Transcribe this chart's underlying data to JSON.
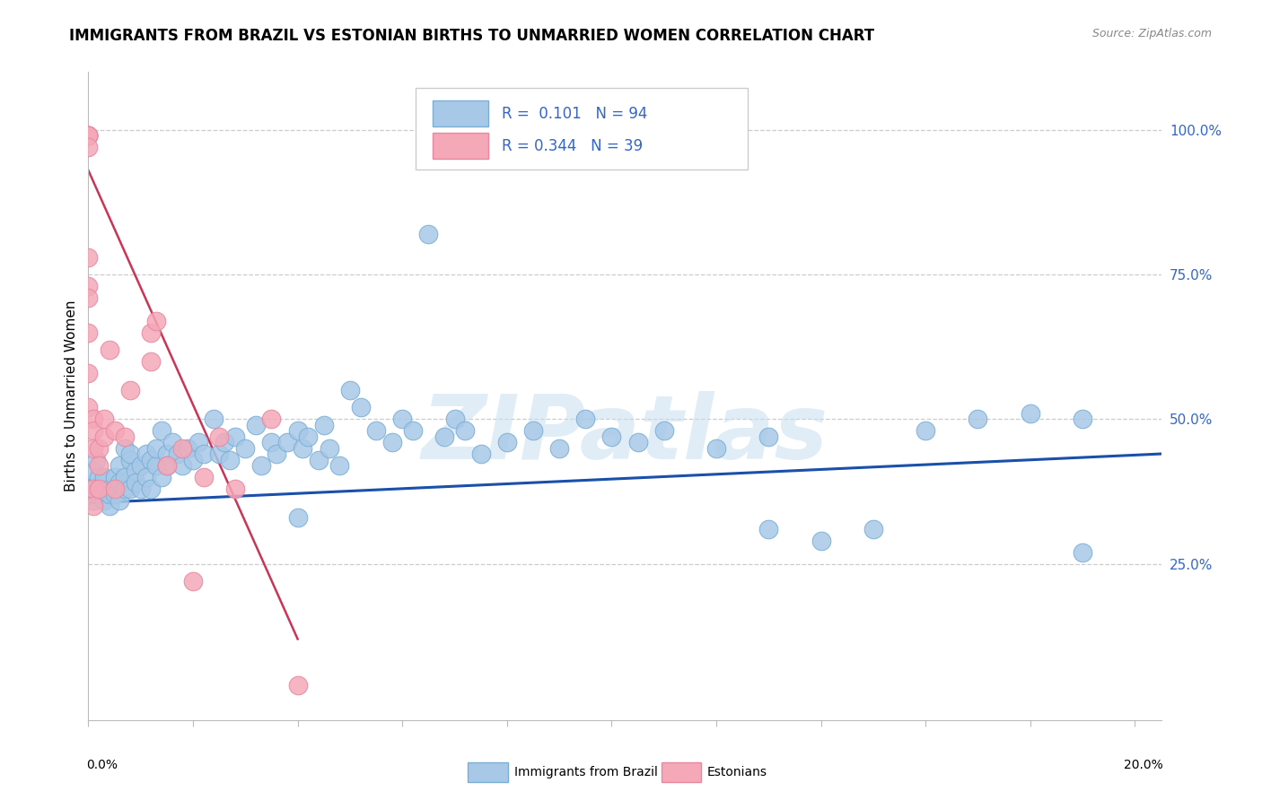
{
  "title": "IMMIGRANTS FROM BRAZIL VS ESTONIAN BIRTHS TO UNMARRIED WOMEN CORRELATION CHART",
  "source": "Source: ZipAtlas.com",
  "ylabel": "Births to Unmarried Women",
  "right_yticks": [
    "100.0%",
    "75.0%",
    "50.0%",
    "25.0%"
  ],
  "right_ytick_vals": [
    1.0,
    0.75,
    0.5,
    0.25
  ],
  "watermark": "ZIPatlas",
  "legend_blue_r": "R =  0.101",
  "legend_blue_n": "N = 94",
  "legend_pink_r": "R = 0.344",
  "legend_pink_n": "N = 39",
  "blue_color": "#a8c8e8",
  "pink_color": "#f4a8b8",
  "blue_edge_color": "#7aafd4",
  "pink_edge_color": "#e888a0",
  "blue_line_color": "#1a4faa",
  "pink_line_color": "#cc3355",
  "label_blue": "Immigrants from Brazil",
  "label_pink": "Estonians",
  "xlim": [
    0.0,
    0.205
  ],
  "ylim": [
    -0.02,
    1.1
  ],
  "blue_scatter_x": [
    0.0005,
    0.001,
    0.001,
    0.0015,
    0.002,
    0.002,
    0.002,
    0.003,
    0.003,
    0.003,
    0.003,
    0.004,
    0.004,
    0.004,
    0.005,
    0.005,
    0.005,
    0.006,
    0.006,
    0.006,
    0.007,
    0.007,
    0.007,
    0.008,
    0.008,
    0.008,
    0.009,
    0.009,
    0.01,
    0.01,
    0.011,
    0.011,
    0.012,
    0.012,
    0.013,
    0.013,
    0.014,
    0.014,
    0.015,
    0.015,
    0.016,
    0.017,
    0.018,
    0.019,
    0.02,
    0.021,
    0.022,
    0.024,
    0.025,
    0.026,
    0.027,
    0.028,
    0.03,
    0.032,
    0.033,
    0.035,
    0.036,
    0.038,
    0.04,
    0.04,
    0.041,
    0.042,
    0.044,
    0.045,
    0.046,
    0.048,
    0.05,
    0.052,
    0.055,
    0.058,
    0.06,
    0.062,
    0.065,
    0.068,
    0.07,
    0.072,
    0.075,
    0.08,
    0.085,
    0.09,
    0.095,
    0.1,
    0.105,
    0.11,
    0.12,
    0.13,
    0.14,
    0.15,
    0.16,
    0.17,
    0.18,
    0.19,
    0.19,
    0.13
  ],
  "blue_scatter_y": [
    0.38,
    0.36,
    0.41,
    0.43,
    0.37,
    0.4,
    0.38,
    0.37,
    0.39,
    0.36,
    0.4,
    0.38,
    0.35,
    0.37,
    0.4,
    0.38,
    0.37,
    0.36,
    0.42,
    0.39,
    0.38,
    0.45,
    0.4,
    0.43,
    0.38,
    0.44,
    0.41,
    0.39,
    0.42,
    0.38,
    0.44,
    0.4,
    0.43,
    0.38,
    0.42,
    0.45,
    0.4,
    0.48,
    0.44,
    0.42,
    0.46,
    0.44,
    0.42,
    0.45,
    0.43,
    0.46,
    0.44,
    0.5,
    0.44,
    0.46,
    0.43,
    0.47,
    0.45,
    0.49,
    0.42,
    0.46,
    0.44,
    0.46,
    0.48,
    0.33,
    0.45,
    0.47,
    0.43,
    0.49,
    0.45,
    0.42,
    0.55,
    0.52,
    0.48,
    0.46,
    0.5,
    0.48,
    0.82,
    0.47,
    0.5,
    0.48,
    0.44,
    0.46,
    0.48,
    0.45,
    0.5,
    0.47,
    0.46,
    0.48,
    0.45,
    0.47,
    0.29,
    0.31,
    0.48,
    0.5,
    0.51,
    0.5,
    0.27,
    0.31
  ],
  "pink_scatter_x": [
    0.0,
    0.0,
    0.0,
    0.0,
    0.0,
    0.0,
    0.0,
    0.0,
    0.0,
    0.0,
    0.0,
    0.0,
    0.001,
    0.001,
    0.001,
    0.001,
    0.001,
    0.002,
    0.002,
    0.002,
    0.003,
    0.003,
    0.004,
    0.005,
    0.005,
    0.007,
    0.008,
    0.012,
    0.012,
    0.013,
    0.015,
    0.018,
    0.02,
    0.022,
    0.025,
    0.028,
    0.035,
    0.04,
    0.0
  ],
  "pink_scatter_y": [
    0.99,
    0.99,
    0.99,
    0.99,
    0.99,
    0.99,
    0.97,
    0.73,
    0.71,
    0.65,
    0.58,
    0.52,
    0.5,
    0.48,
    0.45,
    0.38,
    0.35,
    0.45,
    0.42,
    0.38,
    0.47,
    0.5,
    0.62,
    0.48,
    0.38,
    0.47,
    0.55,
    0.6,
    0.65,
    0.67,
    0.42,
    0.45,
    0.22,
    0.4,
    0.47,
    0.38,
    0.5,
    0.04,
    0.78
  ],
  "blue_trend_x": [
    0.0,
    0.205
  ],
  "blue_trend_y": [
    0.355,
    0.44
  ],
  "pink_trend_x": [
    0.0,
    0.04
  ],
  "pink_trend_y": [
    0.93,
    0.12
  ]
}
